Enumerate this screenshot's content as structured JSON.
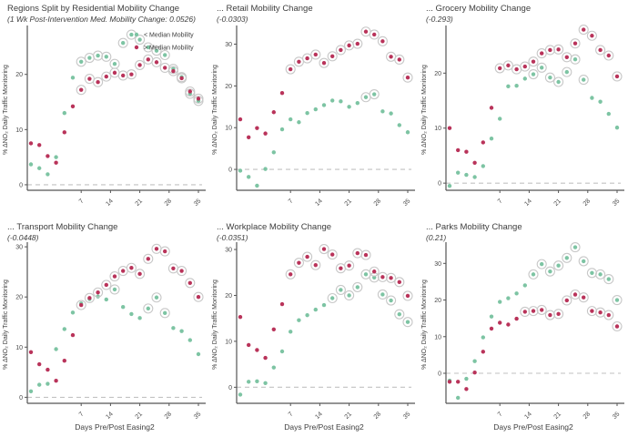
{
  "style": {
    "teal": "#7dc4a3",
    "red": "#b9335a",
    "ring_stroke": "#c8c8c8",
    "axis_color": "#555555",
    "zero_line_color": "#c2c2c2",
    "text_color": "#3d3d3d",
    "tick_text_color": "#4a4a4a"
  },
  "chart_data": [
    {
      "type": "scatter",
      "title": "Regions Split by Residential Mobility Change",
      "subtitle": "(1 Wk Post-Intervention Med. Mobility Change: 0.0526)",
      "xlabel": "",
      "ylabel": "% ΔNO₂ Daily Traffic Monitoring",
      "x": [
        -5,
        -3,
        -1,
        1,
        3,
        5,
        7,
        9,
        11,
        13,
        15,
        17,
        19,
        21,
        23,
        25,
        27,
        29,
        31,
        33,
        35
      ],
      "xticks": [
        7,
        14,
        21,
        28,
        35
      ],
      "yticks": [
        0,
        10,
        20
      ],
      "ylim": [
        -1,
        28.2
      ],
      "zero_line": true,
      "legend": true,
      "series": [
        {
          "name": "< Median Mobility",
          "color": "#7dc4a3",
          "values": [
            3.7,
            3.0,
            1.9,
            5.0,
            13.0,
            19.4,
            22.3,
            23.0,
            23.4,
            23.2,
            21.9,
            25.7,
            27.2,
            26.3,
            24.9,
            24.3,
            23.5,
            21.0,
            19.5,
            16.5,
            15.2
          ],
          "ringed": [
            0,
            0,
            0,
            0,
            0,
            0,
            1,
            1,
            1,
            1,
            1,
            1,
            1,
            1,
            1,
            1,
            1,
            1,
            1,
            1,
            1
          ]
        },
        {
          "name": "> Median Mobility",
          "color": "#b9335a",
          "values": [
            7.5,
            7.2,
            5.2,
            4.0,
            9.5,
            14.2,
            17.2,
            19.2,
            18.6,
            19.6,
            20.3,
            19.8,
            20.0,
            21.7,
            22.7,
            22.2,
            21.2,
            20.6,
            19.3,
            16.9,
            15.6
          ],
          "ringed": [
            0,
            0,
            0,
            0,
            0,
            0,
            1,
            1,
            1,
            1,
            1,
            1,
            1,
            1,
            1,
            1,
            1,
            1,
            1,
            1,
            1
          ]
        }
      ]
    },
    {
      "type": "scatter",
      "title": "... Retail Mobility Change",
      "subtitle": "(-0.0303)",
      "xlabel": "",
      "ylabel": "% ΔNO₂ Daily Traffic Monitoring",
      "x": [
        -5,
        -3,
        -1,
        1,
        3,
        5,
        7,
        9,
        11,
        13,
        15,
        17,
        19,
        21,
        23,
        25,
        27,
        29,
        31,
        33,
        35
      ],
      "xticks": [
        7,
        14,
        21,
        28,
        35
      ],
      "yticks": [
        0,
        10,
        20,
        30
      ],
      "ylim": [
        -5,
        33.6
      ],
      "zero_line": true,
      "legend": false,
      "series": [
        {
          "name": "< Median Mobility",
          "color": "#7dc4a3",
          "values": [
            -0.3,
            -1.8,
            -3.9,
            0.1,
            4.1,
            9.6,
            12.0,
            11.3,
            13.5,
            14.4,
            15.4,
            16.5,
            16.3,
            15.0,
            15.9,
            17.3,
            18.0,
            13.9,
            13.4,
            10.6,
            8.9
          ],
          "ringed": [
            0,
            0,
            0,
            0,
            0,
            0,
            0,
            0,
            0,
            0,
            0,
            0,
            0,
            0,
            0,
            1,
            1,
            0,
            0,
            0,
            0
          ]
        },
        {
          "name": "> Median Mobility",
          "color": "#b9335a",
          "values": [
            12.0,
            7.7,
            9.9,
            8.6,
            13.7,
            18.3,
            24.0,
            25.8,
            26.6,
            27.5,
            25.5,
            27.1,
            28.6,
            29.7,
            30.1,
            33.0,
            32.3,
            30.7,
            27.0,
            26.3,
            22.0
          ],
          "ringed": [
            0,
            0,
            0,
            0,
            0,
            0,
            1,
            1,
            1,
            1,
            1,
            1,
            1,
            1,
            1,
            1,
            1,
            1,
            1,
            1,
            1
          ]
        }
      ]
    },
    {
      "type": "scatter",
      "title": "... Grocery Mobility Change",
      "subtitle": "(-0.293)",
      "xlabel": "",
      "ylabel": "% ΔNO₂ Daily Traffic Monitoring",
      "x": [
        -5,
        -3,
        -1,
        1,
        3,
        5,
        7,
        9,
        11,
        13,
        15,
        17,
        19,
        21,
        23,
        25,
        27,
        29,
        31,
        33,
        35
      ],
      "xticks": [
        7,
        14,
        21,
        28,
        35
      ],
      "yticks": [
        0,
        10,
        20
      ],
      "ylim": [
        -1.3,
        28
      ],
      "zero_line": true,
      "legend": false,
      "series": [
        {
          "name": "< Median Mobility",
          "color": "#7dc4a3",
          "values": [
            -0.5,
            1.9,
            1.5,
            1.1,
            3.1,
            8.1,
            11.7,
            17.6,
            17.7,
            19.0,
            19.8,
            21.0,
            19.2,
            18.4,
            20.2,
            22.5,
            18.8,
            15.5,
            14.8,
            12.6,
            10.1
          ],
          "ringed": [
            0,
            0,
            0,
            0,
            0,
            0,
            0,
            0,
            0,
            0,
            1,
            1,
            1,
            1,
            1,
            1,
            1,
            0,
            0,
            0,
            0
          ]
        },
        {
          "name": "> Median Mobility",
          "color": "#b9335a",
          "values": [
            10.0,
            6.0,
            5.7,
            3.7,
            7.4,
            13.7,
            20.9,
            21.4,
            20.7,
            21.2,
            22.1,
            23.6,
            24.2,
            24.3,
            22.9,
            25.4,
            27.9,
            26.8,
            24.2,
            23.2,
            19.4
          ],
          "ringed": [
            0,
            0,
            0,
            0,
            0,
            0,
            1,
            1,
            1,
            1,
            1,
            1,
            1,
            1,
            1,
            1,
            1,
            1,
            1,
            1,
            1
          ]
        }
      ]
    },
    {
      "type": "scatter",
      "title": "... Transport Mobility Change",
      "subtitle": "(-0.0448)",
      "xlabel": "Days Pre/Post Easing2",
      "ylabel": "% ΔNO₂ Daily Traffic Monitoring",
      "x": [
        -5,
        -3,
        -1,
        1,
        3,
        5,
        7,
        9,
        11,
        13,
        15,
        17,
        19,
        21,
        23,
        25,
        27,
        29,
        31,
        33,
        35
      ],
      "xticks": [
        7,
        14,
        21,
        28,
        35
      ],
      "yticks": [
        0,
        10,
        20,
        30
      ],
      "ylim": [
        -1.2,
        30.2
      ],
      "zero_line": true,
      "legend": false,
      "series": [
        {
          "name": "< Median Mobility",
          "color": "#7dc4a3",
          "values": [
            1.2,
            2.5,
            2.7,
            9.6,
            13.6,
            16.9,
            18.7,
            19.6,
            20.1,
            19.5,
            21.5,
            18.0,
            16.6,
            15.8,
            17.7,
            19.9,
            16.8,
            13.8,
            13.2,
            11.4,
            8.6
          ],
          "ringed": [
            0,
            0,
            0,
            0,
            0,
            0,
            0,
            0,
            0,
            0,
            1,
            0,
            0,
            0,
            1,
            1,
            1,
            0,
            0,
            0,
            0
          ]
        },
        {
          "name": "> Median Mobility",
          "color": "#b9335a",
          "values": [
            9.0,
            6.6,
            5.5,
            3.3,
            7.3,
            12.4,
            18.4,
            19.8,
            20.9,
            22.4,
            24.1,
            25.2,
            25.8,
            24.6,
            27.6,
            29.6,
            29.1,
            25.7,
            25.2,
            22.8,
            20.0
          ],
          "ringed": [
            0,
            0,
            0,
            0,
            0,
            0,
            1,
            1,
            1,
            1,
            1,
            1,
            1,
            1,
            1,
            1,
            1,
            1,
            1,
            1,
            1
          ]
        }
      ]
    },
    {
      "type": "scatter",
      "title": "... Workplace Mobility Change",
      "subtitle": "(-0.0351)",
      "xlabel": "Days Pre/Post Easing2",
      "ylabel": "% ΔNO₂ Daily Traffic Monitoring",
      "x": [
        -5,
        -3,
        -1,
        1,
        3,
        5,
        7,
        9,
        11,
        13,
        15,
        17,
        19,
        21,
        23,
        25,
        27,
        29,
        31,
        33,
        35
      ],
      "xticks": [
        7,
        14,
        21,
        28,
        35
      ],
      "yticks": [
        0,
        10,
        20,
        30
      ],
      "ylim": [
        -3.5,
        30.8
      ],
      "zero_line": true,
      "legend": false,
      "series": [
        {
          "name": "< Median Mobility",
          "color": "#7dc4a3",
          "values": [
            -1.6,
            1.2,
            1.3,
            0.9,
            4.3,
            7.8,
            12.1,
            14.6,
            15.7,
            16.9,
            17.9,
            19.4,
            21.2,
            20.0,
            21.8,
            24.6,
            23.9,
            20.2,
            18.9,
            15.9,
            14.2
          ],
          "ringed": [
            0,
            0,
            0,
            0,
            0,
            0,
            0,
            0,
            0,
            0,
            0,
            1,
            1,
            1,
            1,
            1,
            1,
            1,
            1,
            1,
            1
          ]
        },
        {
          "name": "> Median Mobility",
          "color": "#b9335a",
          "values": [
            15.3,
            9.2,
            8.1,
            6.4,
            12.6,
            18.1,
            24.6,
            27.1,
            28.4,
            26.6,
            30.1,
            28.9,
            25.9,
            26.5,
            29.2,
            28.8,
            25.2,
            24.0,
            23.8,
            22.9,
            19.9
          ],
          "ringed": [
            0,
            0,
            0,
            0,
            0,
            0,
            1,
            1,
            1,
            1,
            1,
            1,
            1,
            1,
            1,
            1,
            1,
            1,
            1,
            1,
            1
          ]
        }
      ]
    },
    {
      "type": "scatter",
      "title": "... Parks Mobility Change",
      "subtitle": "(0.21)",
      "xlabel": "Days Pre/Post Easing2",
      "ylabel": "% ΔNO₂ Daily Traffic Monitoring",
      "x": [
        -5,
        -3,
        -1,
        1,
        3,
        5,
        7,
        9,
        11,
        13,
        15,
        17,
        19,
        21,
        23,
        25,
        27,
        29,
        31,
        33,
        35
      ],
      "xticks": [
        7,
        14,
        21,
        28,
        35
      ],
      "yticks": [
        0,
        10,
        20,
        30
      ],
      "ylim": [
        -8.2,
        34.8
      ],
      "zero_line": true,
      "legend": false,
      "series": [
        {
          "name": "< Median Mobility",
          "color": "#7dc4a3",
          "values": [
            -2.0,
            -6.7,
            -1.5,
            3.3,
            9.8,
            15.5,
            19.5,
            20.5,
            21.8,
            24.0,
            27.0,
            29.8,
            27.8,
            29.4,
            31.5,
            34.4,
            30.6,
            27.4,
            27.0,
            25.7,
            20.0
          ],
          "ringed": [
            0,
            0,
            0,
            0,
            0,
            0,
            0,
            0,
            0,
            0,
            1,
            1,
            1,
            1,
            1,
            1,
            1,
            1,
            1,
            1,
            1
          ]
        },
        {
          "name": "> Median Mobility",
          "color": "#b9335a",
          "values": [
            -2.3,
            -2.3,
            -4.3,
            0.2,
            5.9,
            12.2,
            13.8,
            13.3,
            14.9,
            16.8,
            17.0,
            17.3,
            15.9,
            16.2,
            19.9,
            21.5,
            20.7,
            17.0,
            16.6,
            15.9,
            12.8
          ],
          "ringed": [
            0,
            0,
            0,
            0,
            0,
            0,
            0,
            0,
            0,
            1,
            1,
            1,
            1,
            1,
            1,
            1,
            1,
            1,
            1,
            1,
            1
          ]
        }
      ]
    }
  ]
}
